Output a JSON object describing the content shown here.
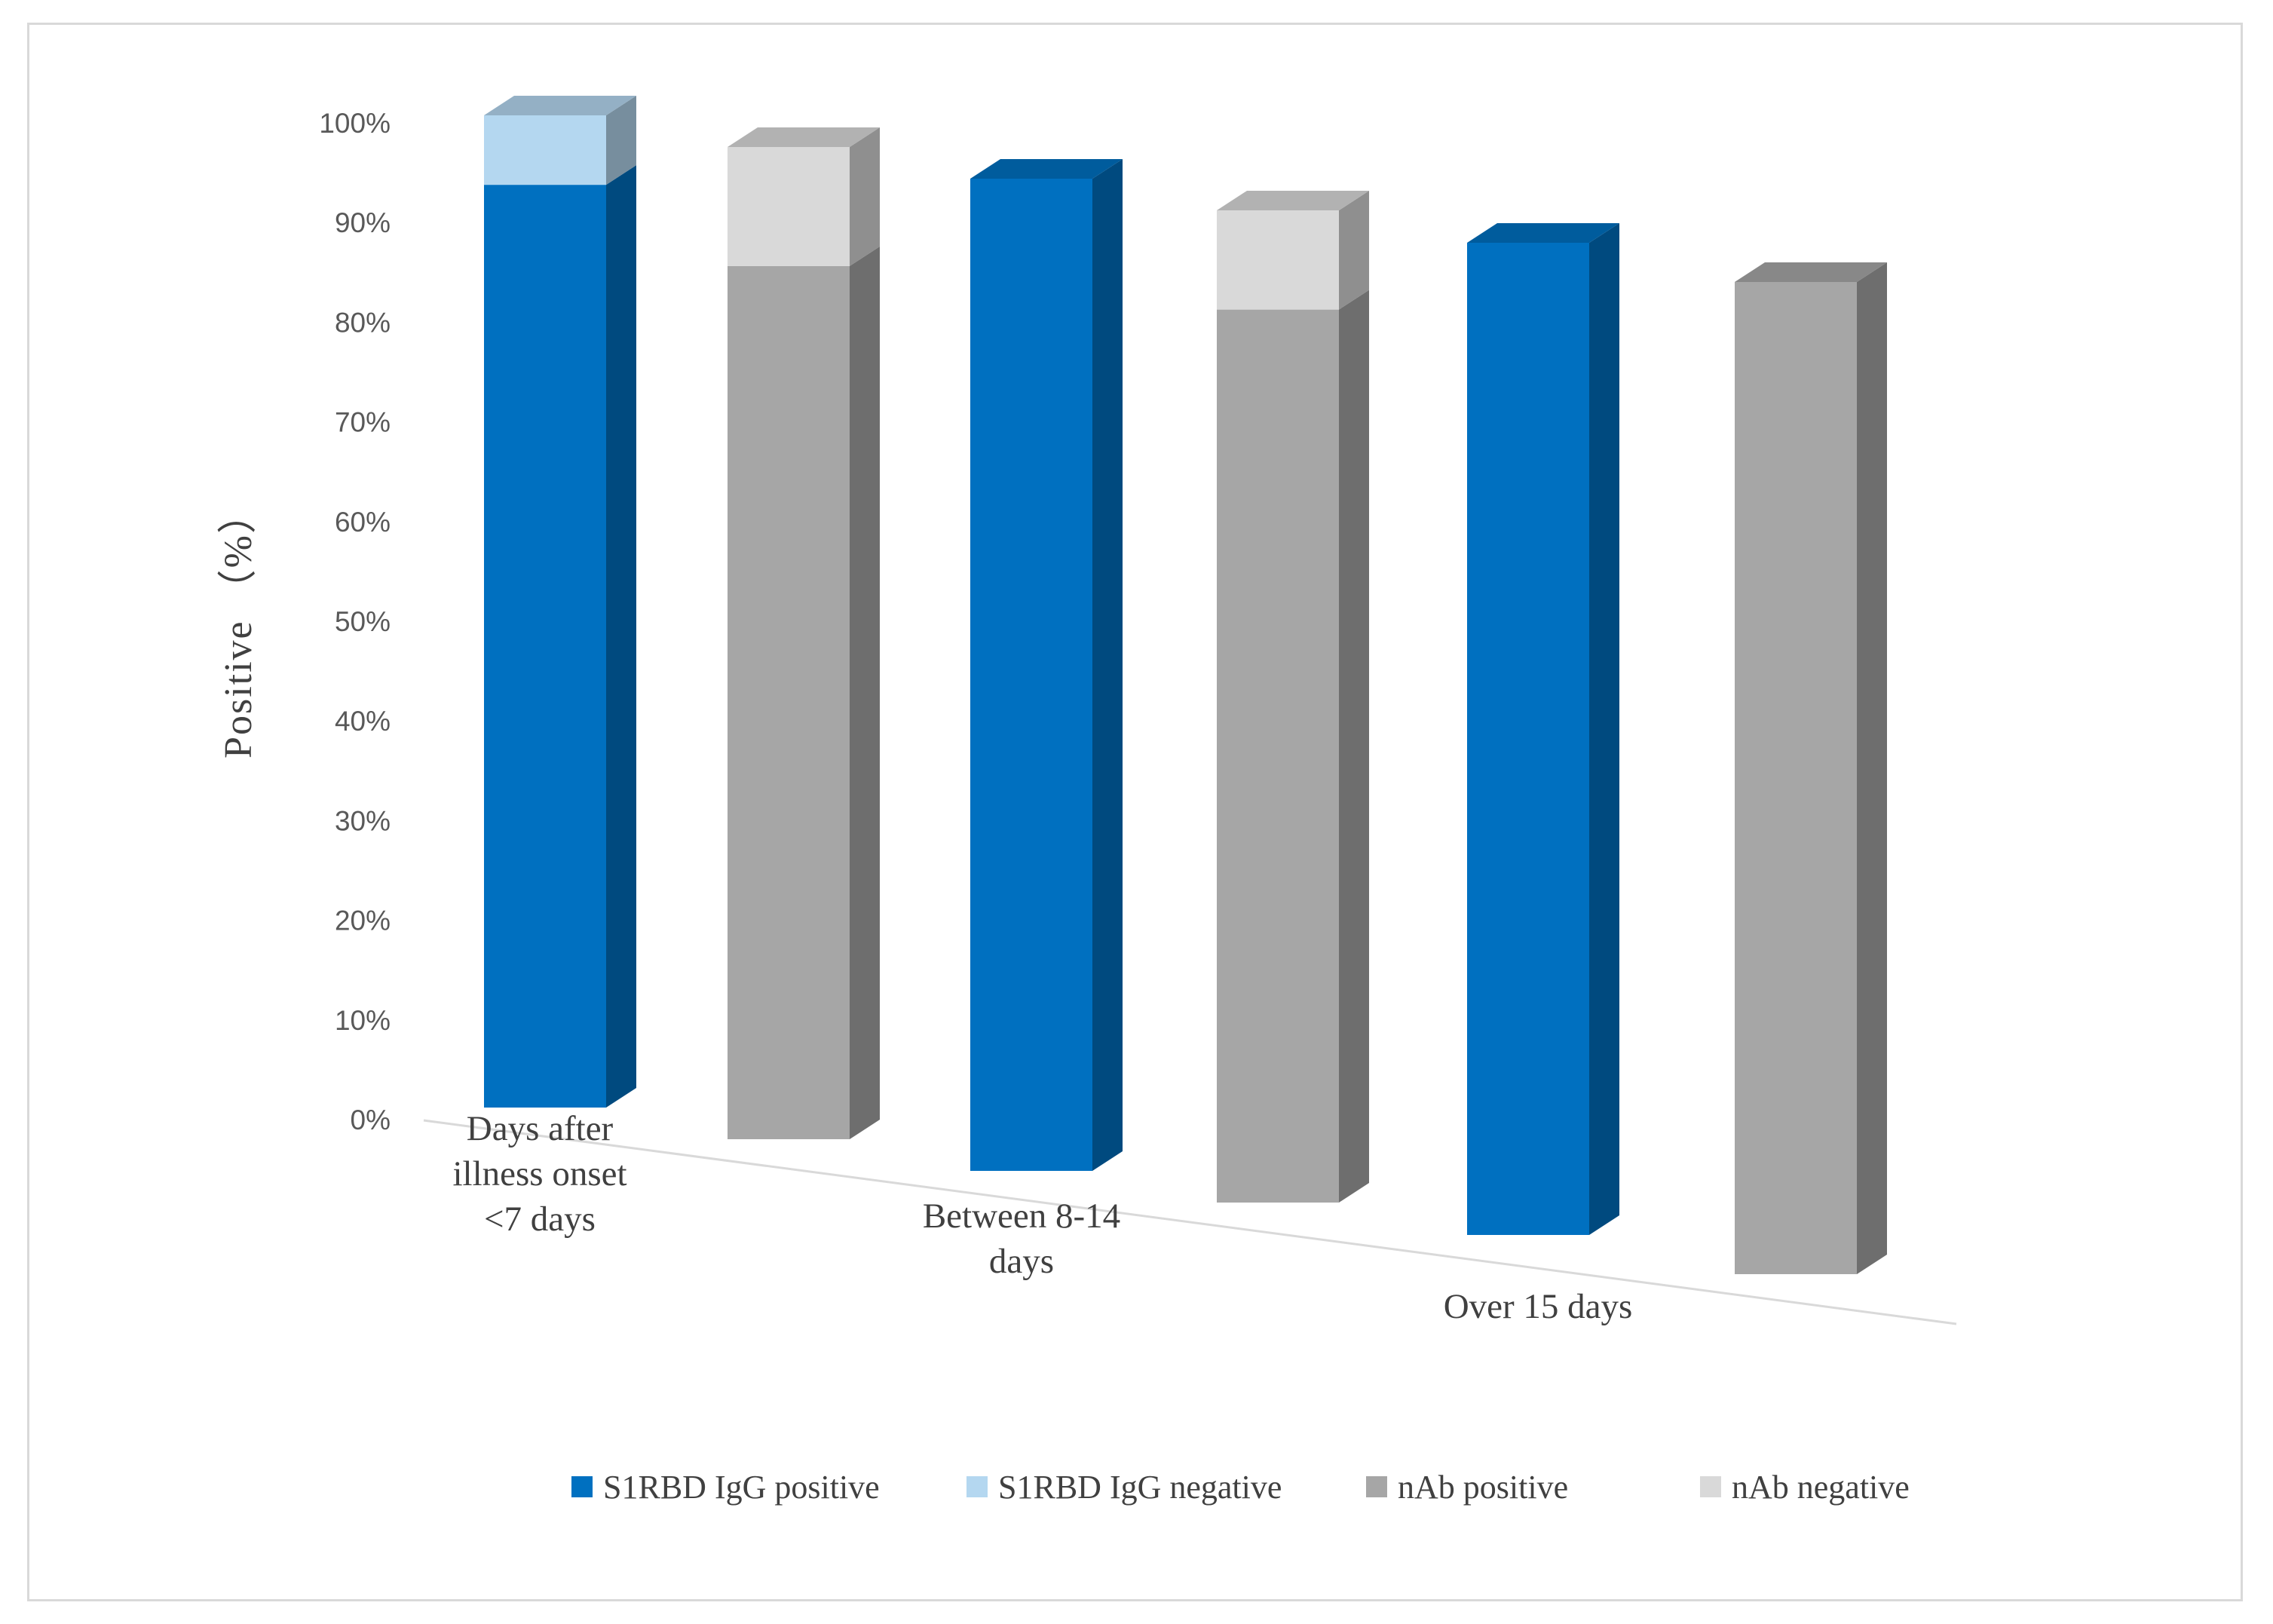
{
  "chart_data": {
    "type": "bar",
    "title": "",
    "xlabel": "",
    "ylabel": "Positive （%）",
    "ylim": [
      0,
      100
    ],
    "yticks": [
      "0%",
      "10%",
      "20%",
      "30%",
      "40%",
      "50%",
      "60%",
      "70%",
      "80%",
      "90%",
      "100%"
    ],
    "categories": [
      [
        "Days after",
        "illness onset",
        "<7 days"
      ],
      [
        "Between 8-14",
        "days"
      ],
      [
        "Over 15 days"
      ]
    ],
    "series": [
      {
        "name": "S1RBD IgG positive",
        "color": "#0070C0",
        "values": [
          93,
          100,
          100
        ]
      },
      {
        "name": "S1RBD IgG negative",
        "color": "#B4D7F0",
        "values": [
          7,
          0,
          0
        ]
      },
      {
        "name": "nAb positive",
        "color": "#A6A6A6",
        "values": [
          88,
          90,
          100
        ]
      },
      {
        "name": "nAb negative",
        "color": "#D9D9D9",
        "values": [
          12,
          10,
          0
        ]
      }
    ],
    "stacks": [
      [
        "S1RBD IgG positive",
        "S1RBD IgG negative"
      ],
      [
        "nAb positive",
        "nAb negative"
      ]
    ],
    "legend_position": "bottom"
  }
}
